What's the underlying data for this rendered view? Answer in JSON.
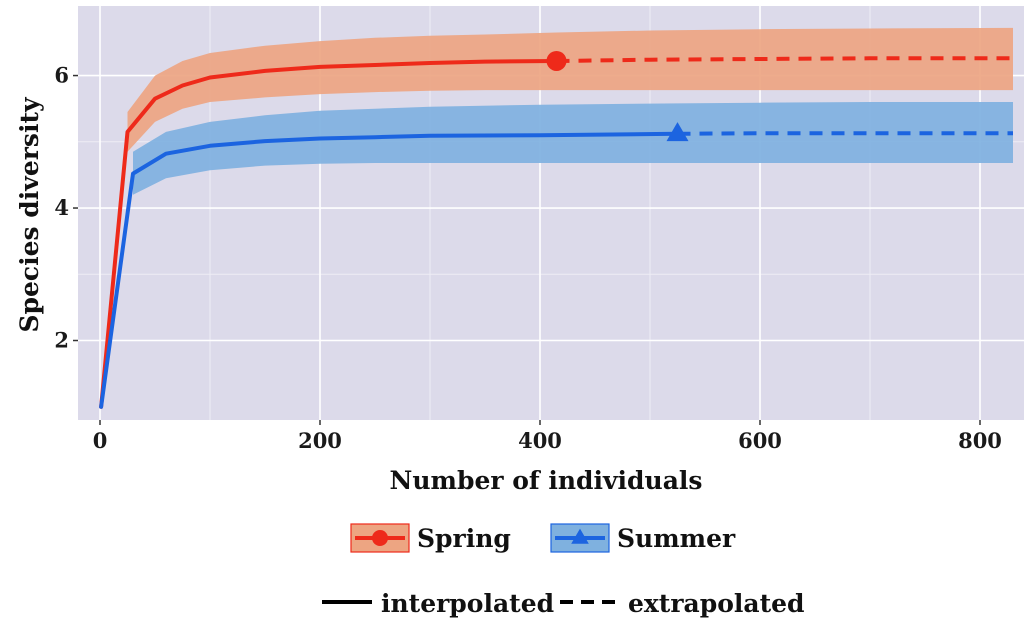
{
  "chart_data": {
    "type": "line",
    "xlabel": "Number of individuals",
    "ylabel": "Species diversity",
    "xlim": [
      -20,
      840
    ],
    "ylim": [
      0.8,
      7.05
    ],
    "xticks": [
      0,
      200,
      400,
      600,
      800
    ],
    "yticks": [
      2,
      4,
      6
    ],
    "grid": true,
    "background": "#dcdaea",
    "series": [
      {
        "name": "Spring",
        "color": "#ee2a1a",
        "band_color": "#eda582",
        "marker": "circle",
        "reference_point": [
          415,
          6.22
        ],
        "interpolated": {
          "x": [
            1,
            25,
            50,
            75,
            100,
            150,
            200,
            250,
            300,
            350,
            415
          ],
          "y": [
            1.0,
            5.15,
            5.65,
            5.85,
            5.97,
            6.07,
            6.13,
            6.16,
            6.19,
            6.21,
            6.22
          ]
        },
        "extrapolated": {
          "x": [
            415,
            500,
            600,
            700,
            830
          ],
          "y": [
            6.22,
            6.24,
            6.25,
            6.26,
            6.26
          ]
        },
        "band": {
          "x": [
            25,
            50,
            75,
            100,
            150,
            200,
            250,
            300,
            350,
            415,
            500,
            600,
            700,
            830
          ],
          "lower": [
            4.85,
            5.3,
            5.5,
            5.6,
            5.67,
            5.72,
            5.75,
            5.77,
            5.78,
            5.78,
            5.78,
            5.78,
            5.78,
            5.78
          ],
          "upper": [
            5.45,
            6.0,
            6.22,
            6.34,
            6.45,
            6.52,
            6.57,
            6.6,
            6.62,
            6.65,
            6.68,
            6.7,
            6.71,
            6.72
          ]
        }
      },
      {
        "name": "Summer",
        "color": "#1c64e0",
        "band_color": "#7fb1df",
        "marker": "triangle",
        "reference_point": [
          525,
          5.12
        ],
        "interpolated": {
          "x": [
            1,
            30,
            60,
            100,
            150,
            200,
            250,
            300,
            400,
            525
          ],
          "y": [
            1.0,
            4.52,
            4.82,
            4.94,
            5.01,
            5.05,
            5.07,
            5.09,
            5.1,
            5.12
          ]
        },
        "extrapolated": {
          "x": [
            525,
            600,
            700,
            830
          ],
          "y": [
            5.12,
            5.13,
            5.13,
            5.13
          ]
        },
        "band": {
          "x": [
            30,
            60,
            100,
            150,
            200,
            250,
            300,
            400,
            525,
            600,
            700,
            830
          ],
          "lower": [
            4.2,
            4.45,
            4.57,
            4.64,
            4.67,
            4.68,
            4.68,
            4.68,
            4.68,
            4.68,
            4.68,
            4.68
          ],
          "upper": [
            4.85,
            5.15,
            5.3,
            5.4,
            5.47,
            5.5,
            5.53,
            5.56,
            5.58,
            5.59,
            5.6,
            5.6
          ]
        }
      }
    ],
    "legend": {
      "placement": "bottom",
      "groups": [
        "Spring",
        "Summer"
      ],
      "line_types": [
        "interpolated",
        "extrapolated"
      ]
    }
  }
}
